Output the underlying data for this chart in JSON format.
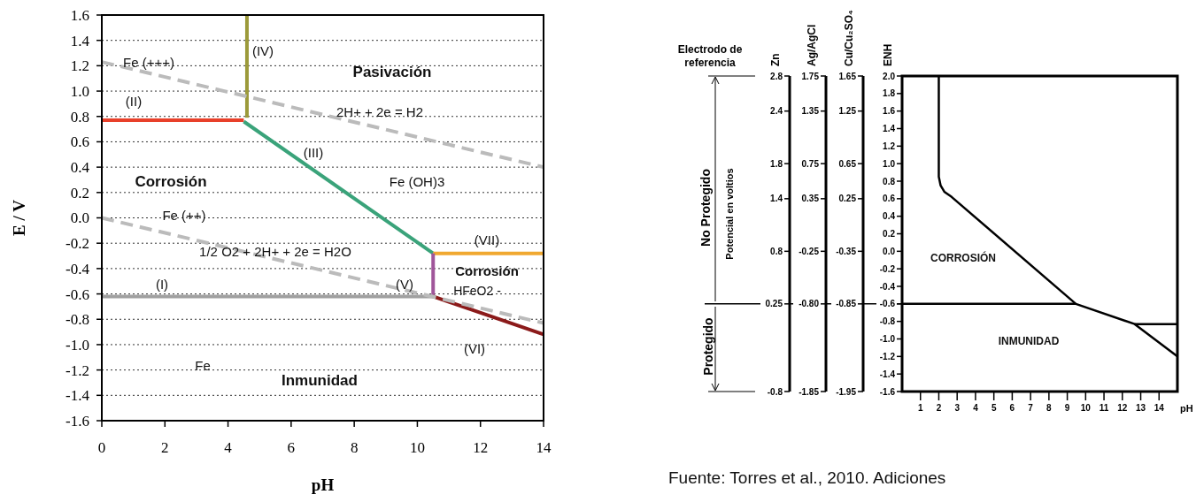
{
  "chart_data": [
    {
      "type": "line",
      "xlabel": "pH",
      "ylabel": "E / V",
      "xlim": [
        0,
        14
      ],
      "ylim": [
        -1.6,
        1.6
      ],
      "xticks": [
        0,
        2,
        4,
        6,
        8,
        10,
        12,
        14
      ],
      "yticks": [
        1.6,
        1.4,
        1.2,
        {
          "value": 1.0,
          "label": "1.0"
        },
        0.8,
        0.6,
        0.4,
        0.2,
        {
          "value": 0,
          "label": "0.0"
        },
        -0.2,
        -0.4,
        -0.6,
        -0.8,
        {
          "value": -1.0,
          "label": "-1.0"
        },
        -1.2,
        -1.4,
        -1.6
      ],
      "grid": "y",
      "marker": "none",
      "line_style": "solid",
      "series": [
        {
          "color": "#e8402a",
          "x": [
            0,
            4.5
          ],
          "values": [
            0.77,
            0.77
          ]
        },
        {
          "color": "#9c9a3a",
          "x": [
            4.6,
            4.6
          ],
          "values": [
            0.79,
            1.6
          ]
        },
        {
          "color": "#3aa37a",
          "x": [
            4.5,
            10.5
          ],
          "values": [
            0.76,
            -0.28
          ]
        },
        {
          "color": "#f0a830",
          "x": [
            10.5,
            14
          ],
          "values": [
            -0.28,
            -0.28
          ]
        },
        {
          "color": "#a0569a",
          "x": [
            10.5,
            10.5
          ],
          "values": [
            -0.28,
            -0.62
          ]
        },
        {
          "color": "#a0a0a0",
          "x": [
            0,
            10.5
          ],
          "values": [
            -0.62,
            -0.62
          ]
        },
        {
          "color": "#8b1a1a",
          "x": [
            10.5,
            14
          ],
          "values": [
            -0.62,
            -0.92
          ]
        },
        {
          "color": "#bbbbbb",
          "line_style": "dashed",
          "x": [
            0,
            14
          ],
          "values": [
            1.23,
            0.4
          ]
        },
        {
          "color": "#bbbbbb",
          "line_style": "dashed",
          "x": [
            0,
            14
          ],
          "values": [
            0,
            -0.83
          ]
        }
      ],
      "annotations": [
        "(IV)",
        "Fe (+++)",
        "Pasivación",
        "(II)",
        "2H+ + 2e = H2",
        "(III)",
        "Corrosión",
        "Fe (OH)3",
        "Fe (++)",
        "(VII)",
        "1/2 O2 + 2H+  +  2e = H2O",
        "Corrosión",
        "(I)",
        "(V)",
        "HFeO2 -",
        "(VI)",
        "Fe",
        "Inmunidad"
      ]
    },
    {
      "type": "other",
      "annotations": [
        "Electrodo de referencia",
        "No Protegido",
        "Potencial en voltios",
        "Protegido",
        "Zn",
        "Ag/AgCl",
        "Cu/Cu₂SO₄",
        "2.8",
        "2.4",
        "1.8",
        "1.4",
        "0.8",
        "0.25",
        "-0.8",
        "1.75",
        "1.35",
        "0.75",
        "0.35",
        "-0.25",
        "-0.80",
        "-1.85",
        "1.65",
        "1.25",
        "0.65",
        "0.25",
        "-0.35",
        "-0.85",
        "-1.95"
      ]
    },
    {
      "type": "line",
      "xlabel": "pH",
      "ylabel": "ENH",
      "xlim": [
        0,
        15
      ],
      "ylim": [
        -1.6,
        2.0
      ],
      "xticks": [
        1,
        2,
        3,
        4,
        5,
        6,
        7,
        8,
        9,
        10,
        11,
        12,
        13,
        14
      ],
      "yticks": [
        {
          "value": 2.0,
          "label": "2.0"
        },
        1.8,
        1.6,
        1.4,
        1.2,
        {
          "value": 1.0,
          "label": "1.0"
        },
        0.8,
        0.6,
        0.4,
        0.2,
        {
          "value": 0,
          "label": "0.0"
        },
        -0.2,
        -0.4,
        -0.6,
        -0.8,
        {
          "value": -1.0,
          "label": "-1.0"
        },
        -1.2,
        -1.4,
        -1.6
      ],
      "marker": "none",
      "line_style": "solid",
      "series": [
        {
          "color": "#000000",
          "x": [
            2,
            2,
            2.1,
            2.3,
            2.7,
            9.47,
            12.67,
            15
          ],
          "values": [
            2.0,
            0.85,
            0.75,
            0.68,
            0.62,
            -0.6,
            -0.83,
            -1.2
          ]
        },
        {
          "color": "#000000",
          "x": [
            0,
            9.47
          ],
          "values": [
            -0.6,
            -0.6
          ]
        },
        {
          "color": "#000000",
          "x": [
            12.67,
            15
          ],
          "values": [
            -0.83,
            -0.83
          ]
        }
      ],
      "annotations": [
        "CORROSIÓN",
        "INMUNIDAD",
        "Fuente: Torres et al., 2010. Adiciones"
      ]
    }
  ]
}
